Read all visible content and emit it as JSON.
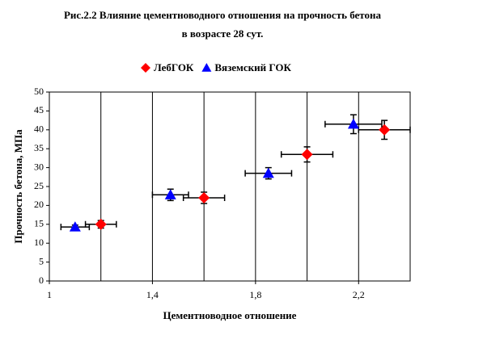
{
  "chart_data": {
    "type": "scatter",
    "title": [
      "Рис.2.2 Влияние цементноводного отношения на прочность бетона",
      "в возрасте 28 сут."
    ],
    "x_label": "Цементноводное отношение",
    "y_label": "Прочность бетона, МПа",
    "xlim": [
      1,
      2.4
    ],
    "xticks": [
      1,
      {
        "value": 1.4,
        "label": "1,4"
      },
      {
        "value": 1.8,
        "label": "1,8"
      },
      {
        "value": 2.2,
        "label": "2,2"
      }
    ],
    "x_minor_grid": [
      1.2,
      1.6,
      2.0,
      2.4
    ],
    "ylim": [
      0,
      50
    ],
    "yticks": [
      0,
      5,
      10,
      15,
      20,
      25,
      30,
      35,
      40,
      45,
      50
    ],
    "grid": "x",
    "legend": "top",
    "series": [
      {
        "name": "ЛебГОК",
        "color": "#ff0000",
        "marker": "diamond",
        "x": [
          1.2,
          1.6,
          2.0,
          2.3
        ],
        "values": [
          15,
          22,
          33.5,
          40
        ],
        "x_errors": [
          0.06,
          0.08,
          0.1,
          0.1
        ],
        "y_errors": [
          1,
          1.5,
          2,
          2.5
        ]
      },
      {
        "name": "Вяземский ГОК",
        "color": "#0000ff",
        "marker": "triangle",
        "x": [
          1.1,
          1.47,
          1.85,
          2.18
        ],
        "values": [
          14.3,
          22.8,
          28.5,
          41.5
        ],
        "x_errors": [
          0.055,
          0.07,
          0.09,
          0.11
        ],
        "y_errors": [
          0.5,
          1.5,
          1.5,
          2.5
        ]
      }
    ]
  }
}
